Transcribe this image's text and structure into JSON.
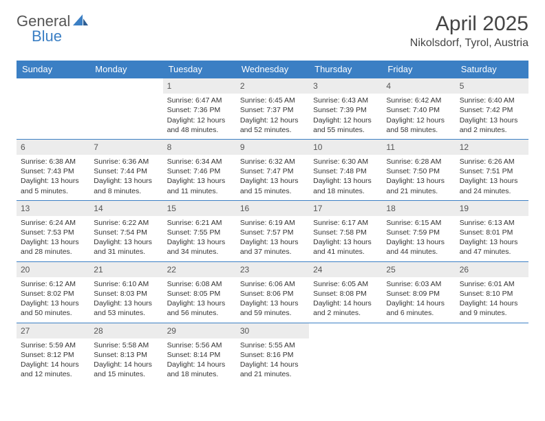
{
  "logo": {
    "text1": "General",
    "text2": "Blue"
  },
  "title": "April 2025",
  "subtitle": "Nikolsdorf, Tyrol, Austria",
  "colors": {
    "header_bg": "#3b7fc4",
    "header_fg": "#ffffff",
    "daynum_bg": "#ececec",
    "border": "#3b7fc4",
    "text": "#333333",
    "logo_gray": "#555555",
    "logo_blue": "#3b7fc4"
  },
  "typography": {
    "title_fontsize": 30,
    "subtitle_fontsize": 16,
    "dayhead_fontsize": 13,
    "cell_fontsize": 10.5
  },
  "day_names": [
    "Sunday",
    "Monday",
    "Tuesday",
    "Wednesday",
    "Thursday",
    "Friday",
    "Saturday"
  ],
  "weeks": [
    [
      {
        "n": "",
        "sr": "",
        "ss": "",
        "dl": ""
      },
      {
        "n": "",
        "sr": "",
        "ss": "",
        "dl": ""
      },
      {
        "n": "1",
        "sr": "Sunrise: 6:47 AM",
        "ss": "Sunset: 7:36 PM",
        "dl": "Daylight: 12 hours and 48 minutes."
      },
      {
        "n": "2",
        "sr": "Sunrise: 6:45 AM",
        "ss": "Sunset: 7:37 PM",
        "dl": "Daylight: 12 hours and 52 minutes."
      },
      {
        "n": "3",
        "sr": "Sunrise: 6:43 AM",
        "ss": "Sunset: 7:39 PM",
        "dl": "Daylight: 12 hours and 55 minutes."
      },
      {
        "n": "4",
        "sr": "Sunrise: 6:42 AM",
        "ss": "Sunset: 7:40 PM",
        "dl": "Daylight: 12 hours and 58 minutes."
      },
      {
        "n": "5",
        "sr": "Sunrise: 6:40 AM",
        "ss": "Sunset: 7:42 PM",
        "dl": "Daylight: 13 hours and 2 minutes."
      }
    ],
    [
      {
        "n": "6",
        "sr": "Sunrise: 6:38 AM",
        "ss": "Sunset: 7:43 PM",
        "dl": "Daylight: 13 hours and 5 minutes."
      },
      {
        "n": "7",
        "sr": "Sunrise: 6:36 AM",
        "ss": "Sunset: 7:44 PM",
        "dl": "Daylight: 13 hours and 8 minutes."
      },
      {
        "n": "8",
        "sr": "Sunrise: 6:34 AM",
        "ss": "Sunset: 7:46 PM",
        "dl": "Daylight: 13 hours and 11 minutes."
      },
      {
        "n": "9",
        "sr": "Sunrise: 6:32 AM",
        "ss": "Sunset: 7:47 PM",
        "dl": "Daylight: 13 hours and 15 minutes."
      },
      {
        "n": "10",
        "sr": "Sunrise: 6:30 AM",
        "ss": "Sunset: 7:48 PM",
        "dl": "Daylight: 13 hours and 18 minutes."
      },
      {
        "n": "11",
        "sr": "Sunrise: 6:28 AM",
        "ss": "Sunset: 7:50 PM",
        "dl": "Daylight: 13 hours and 21 minutes."
      },
      {
        "n": "12",
        "sr": "Sunrise: 6:26 AM",
        "ss": "Sunset: 7:51 PM",
        "dl": "Daylight: 13 hours and 24 minutes."
      }
    ],
    [
      {
        "n": "13",
        "sr": "Sunrise: 6:24 AM",
        "ss": "Sunset: 7:53 PM",
        "dl": "Daylight: 13 hours and 28 minutes."
      },
      {
        "n": "14",
        "sr": "Sunrise: 6:22 AM",
        "ss": "Sunset: 7:54 PM",
        "dl": "Daylight: 13 hours and 31 minutes."
      },
      {
        "n": "15",
        "sr": "Sunrise: 6:21 AM",
        "ss": "Sunset: 7:55 PM",
        "dl": "Daylight: 13 hours and 34 minutes."
      },
      {
        "n": "16",
        "sr": "Sunrise: 6:19 AM",
        "ss": "Sunset: 7:57 PM",
        "dl": "Daylight: 13 hours and 37 minutes."
      },
      {
        "n": "17",
        "sr": "Sunrise: 6:17 AM",
        "ss": "Sunset: 7:58 PM",
        "dl": "Daylight: 13 hours and 41 minutes."
      },
      {
        "n": "18",
        "sr": "Sunrise: 6:15 AM",
        "ss": "Sunset: 7:59 PM",
        "dl": "Daylight: 13 hours and 44 minutes."
      },
      {
        "n": "19",
        "sr": "Sunrise: 6:13 AM",
        "ss": "Sunset: 8:01 PM",
        "dl": "Daylight: 13 hours and 47 minutes."
      }
    ],
    [
      {
        "n": "20",
        "sr": "Sunrise: 6:12 AM",
        "ss": "Sunset: 8:02 PM",
        "dl": "Daylight: 13 hours and 50 minutes."
      },
      {
        "n": "21",
        "sr": "Sunrise: 6:10 AM",
        "ss": "Sunset: 8:03 PM",
        "dl": "Daylight: 13 hours and 53 minutes."
      },
      {
        "n": "22",
        "sr": "Sunrise: 6:08 AM",
        "ss": "Sunset: 8:05 PM",
        "dl": "Daylight: 13 hours and 56 minutes."
      },
      {
        "n": "23",
        "sr": "Sunrise: 6:06 AM",
        "ss": "Sunset: 8:06 PM",
        "dl": "Daylight: 13 hours and 59 minutes."
      },
      {
        "n": "24",
        "sr": "Sunrise: 6:05 AM",
        "ss": "Sunset: 8:08 PM",
        "dl": "Daylight: 14 hours and 2 minutes."
      },
      {
        "n": "25",
        "sr": "Sunrise: 6:03 AM",
        "ss": "Sunset: 8:09 PM",
        "dl": "Daylight: 14 hours and 6 minutes."
      },
      {
        "n": "26",
        "sr": "Sunrise: 6:01 AM",
        "ss": "Sunset: 8:10 PM",
        "dl": "Daylight: 14 hours and 9 minutes."
      }
    ],
    [
      {
        "n": "27",
        "sr": "Sunrise: 5:59 AM",
        "ss": "Sunset: 8:12 PM",
        "dl": "Daylight: 14 hours and 12 minutes."
      },
      {
        "n": "28",
        "sr": "Sunrise: 5:58 AM",
        "ss": "Sunset: 8:13 PM",
        "dl": "Daylight: 14 hours and 15 minutes."
      },
      {
        "n": "29",
        "sr": "Sunrise: 5:56 AM",
        "ss": "Sunset: 8:14 PM",
        "dl": "Daylight: 14 hours and 18 minutes."
      },
      {
        "n": "30",
        "sr": "Sunrise: 5:55 AM",
        "ss": "Sunset: 8:16 PM",
        "dl": "Daylight: 14 hours and 21 minutes."
      },
      {
        "n": "",
        "sr": "",
        "ss": "",
        "dl": ""
      },
      {
        "n": "",
        "sr": "",
        "ss": "",
        "dl": ""
      },
      {
        "n": "",
        "sr": "",
        "ss": "",
        "dl": ""
      }
    ]
  ]
}
